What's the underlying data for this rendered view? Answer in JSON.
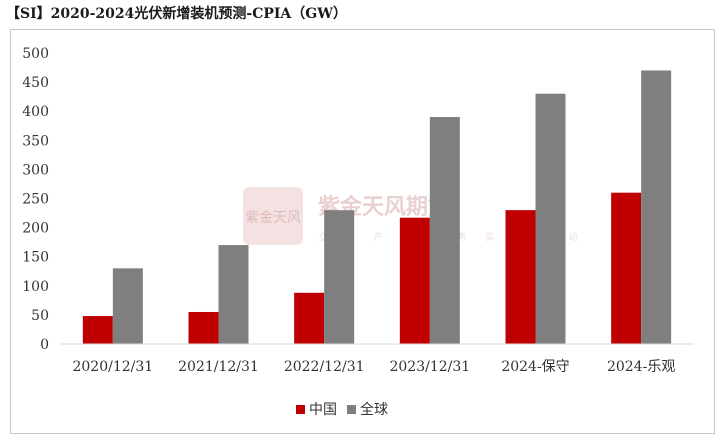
{
  "title": "【SI】2020-2024光伏新增装机预测-CPIA（GW）",
  "watermark": {
    "brand": "紫金天风期货",
    "slogan": "立 足 产 业 服 务 实 体 驱 动",
    "seal": "紫金天风"
  },
  "colors": {
    "china": "#c00000",
    "global": "#7f7f7f",
    "gridline": "#d9d9d9"
  },
  "chart_data": {
    "type": "bar",
    "categories": [
      "2020/12/31",
      "2021/12/31",
      "2022/12/31",
      "2023/12/31",
      "2024-保守",
      "2024-乐观"
    ],
    "series": [
      {
        "name": "中国",
        "values": [
          48,
          55,
          88,
          217,
          230,
          260
        ]
      },
      {
        "name": "全球",
        "values": [
          130,
          170,
          230,
          390,
          430,
          470
        ]
      }
    ],
    "ylim": [
      0,
      500
    ],
    "yticks": [
      0,
      50,
      100,
      150,
      200,
      250,
      300,
      350,
      400,
      450,
      500
    ],
    "legend_position": "bottom",
    "grid": false
  }
}
